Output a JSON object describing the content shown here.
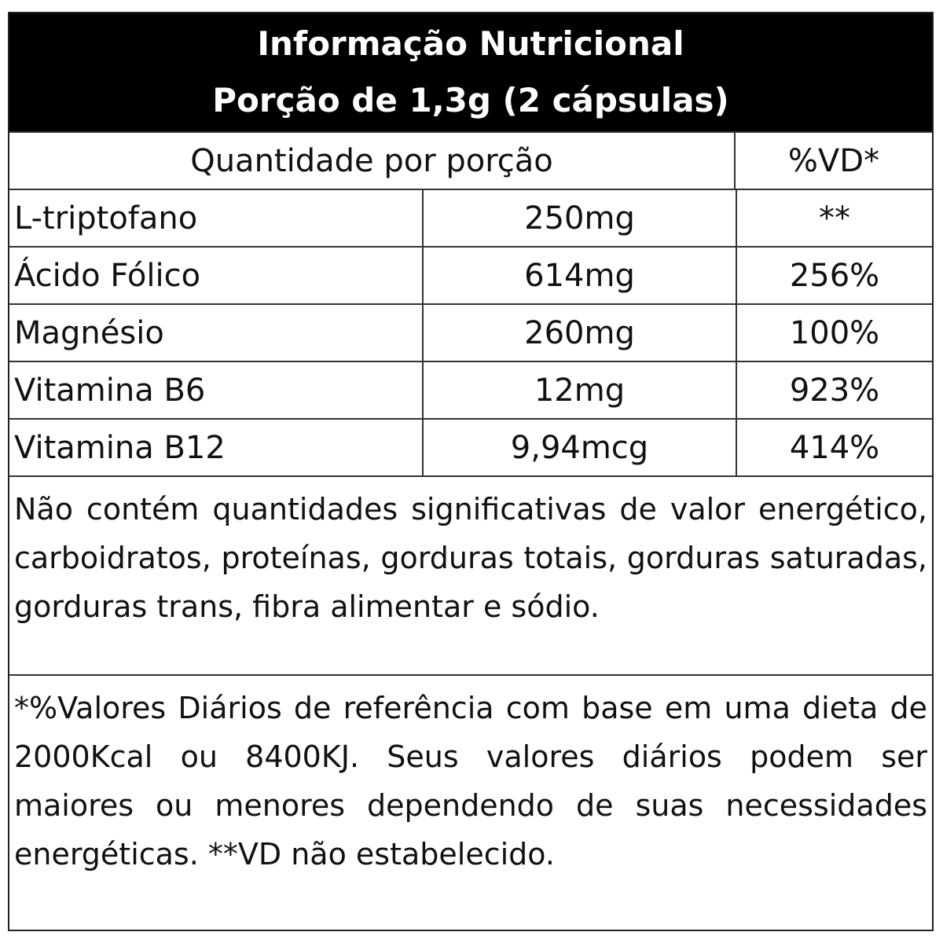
{
  "header": {
    "title": "Informação Nutricional",
    "serving": "Porção de 1,3g (2 cápsulas)"
  },
  "table": {
    "columns": [
      "Quantidade por porção",
      "%VD*"
    ],
    "rows": [
      [
        "L-triptofano",
        "250mg",
        "**"
      ],
      [
        "Ácido Fólico",
        "614mg",
        "256%"
      ],
      [
        "Magnésio",
        "260mg",
        "100%"
      ],
      [
        "Vitamina B6",
        "12mg",
        "923%"
      ],
      [
        "Vitamina B12",
        "9,94mcg",
        "414%"
      ]
    ]
  },
  "notes": [
    "Não contém quantidades significativas de valor energético, carboidratos, proteínas, gorduras totais, gorduras saturadas, gorduras trans, fibra alimentar e sódio.",
    "*%Valores Diários de referência com base em uma dieta de 2000Kcal ou 8400KJ. Seus valores diários podem ser maiores ou menores dependendo de suas necessidades energéticas. **VD não estabelecido."
  ]
}
